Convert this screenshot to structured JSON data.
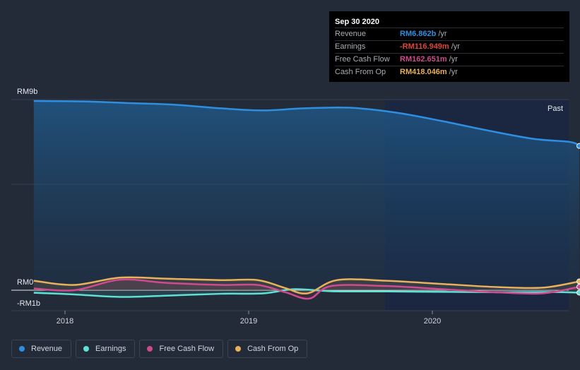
{
  "chart_data": {
    "type": "line",
    "x_ticks": [
      "2018",
      "2019",
      "2020"
    ],
    "y_axis": {
      "top_label": "RM9b",
      "zero_label": "RM0",
      "bottom_label": "-RM1b",
      "ylim": [
        -1,
        9
      ]
    },
    "past_label": "Past",
    "units": "RM billions",
    "series": [
      {
        "name": "Revenue",
        "color": "#2e8fe0",
        "points": [
          [
            2017.83,
            9.0
          ],
          [
            2018.1,
            8.98
          ],
          [
            2018.35,
            8.9
          ],
          [
            2018.6,
            8.82
          ],
          [
            2018.85,
            8.65
          ],
          [
            2019.08,
            8.55
          ],
          [
            2019.3,
            8.65
          ],
          [
            2019.55,
            8.68
          ],
          [
            2019.8,
            8.45
          ],
          [
            2020.05,
            8.05
          ],
          [
            2020.3,
            7.6
          ],
          [
            2020.55,
            7.2
          ],
          [
            2020.75,
            7.05
          ],
          [
            2020.8,
            6.862
          ]
        ]
      },
      {
        "name": "Earnings",
        "color": "#5ee1d2",
        "points": [
          [
            2017.83,
            -0.12
          ],
          [
            2018.05,
            -0.2
          ],
          [
            2018.3,
            -0.32
          ],
          [
            2018.55,
            -0.26
          ],
          [
            2018.85,
            -0.17
          ],
          [
            2019.08,
            -0.15
          ],
          [
            2019.25,
            0.05
          ],
          [
            2019.45,
            -0.05
          ],
          [
            2019.75,
            -0.06
          ],
          [
            2020.1,
            -0.08
          ],
          [
            2020.4,
            -0.1
          ],
          [
            2020.65,
            -0.09
          ],
          [
            2020.8,
            -0.117
          ]
        ]
      },
      {
        "name": "Free Cash Flow",
        "color": "#d04a8e",
        "points": [
          [
            2017.83,
            0.08
          ],
          [
            2018.05,
            0.0
          ],
          [
            2018.3,
            0.5
          ],
          [
            2018.55,
            0.35
          ],
          [
            2018.85,
            0.25
          ],
          [
            2019.05,
            0.25
          ],
          [
            2019.2,
            -0.1
          ],
          [
            2019.33,
            -0.4
          ],
          [
            2019.45,
            0.2
          ],
          [
            2019.75,
            0.2
          ],
          [
            2020.05,
            0.05
          ],
          [
            2020.35,
            -0.1
          ],
          [
            2020.6,
            -0.15
          ],
          [
            2020.8,
            0.163
          ]
        ]
      },
      {
        "name": "Cash From Op",
        "color": "#e8b15a",
        "points": [
          [
            2017.83,
            0.45
          ],
          [
            2018.05,
            0.25
          ],
          [
            2018.3,
            0.6
          ],
          [
            2018.55,
            0.55
          ],
          [
            2018.85,
            0.48
          ],
          [
            2019.05,
            0.48
          ],
          [
            2019.2,
            0.1
          ],
          [
            2019.32,
            -0.15
          ],
          [
            2019.48,
            0.48
          ],
          [
            2019.75,
            0.45
          ],
          [
            2020.05,
            0.3
          ],
          [
            2020.35,
            0.15
          ],
          [
            2020.6,
            0.12
          ],
          [
            2020.8,
            0.418
          ]
        ]
      }
    ]
  },
  "tooltip": {
    "date": "Sep 30 2020",
    "rows": [
      {
        "label": "Revenue",
        "value": "RM6.862b",
        "unit": "/yr",
        "color": "#2e8fe0"
      },
      {
        "label": "Earnings",
        "value": "-RM116.949m",
        "unit": "/yr",
        "color": "#e0453a"
      },
      {
        "label": "Free Cash Flow",
        "value": "RM162.651m",
        "unit": "/yr",
        "color": "#d04a8e"
      },
      {
        "label": "Cash From Op",
        "value": "RM418.046m",
        "unit": "/yr",
        "color": "#e8b15a"
      }
    ]
  },
  "legend": [
    {
      "label": "Revenue",
      "color": "#2e8fe0"
    },
    {
      "label": "Earnings",
      "color": "#5ee1d2"
    },
    {
      "label": "Free Cash Flow",
      "color": "#d04a8e"
    },
    {
      "label": "Cash From Op",
      "color": "#e8b15a"
    }
  ]
}
